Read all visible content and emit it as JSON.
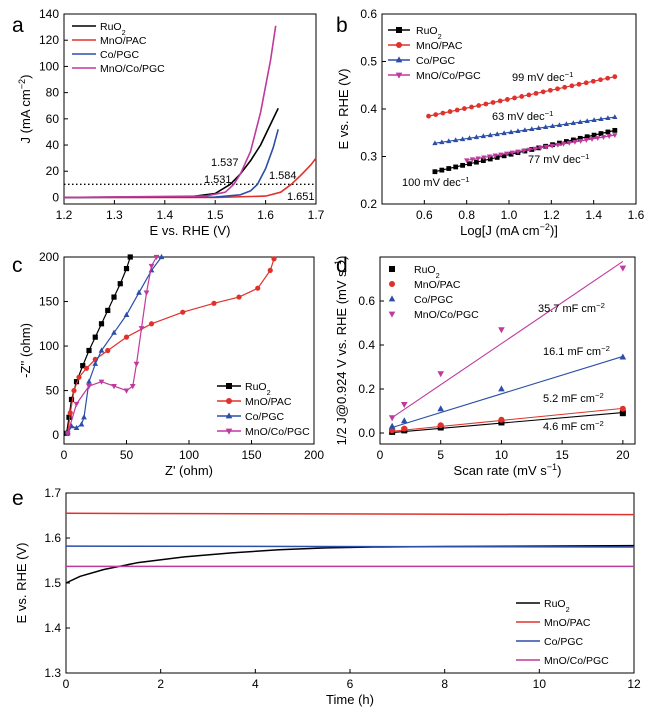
{
  "colors": {
    "ruo2": "#000000",
    "mno_pac": "#e0322c",
    "co_pgc": "#2c4ea8",
    "mno_co_pgc": "#c0399c"
  },
  "chart_data": [
    {
      "panel": "a",
      "type": "line",
      "xlabel": "E vs. RHE (V)",
      "ylabel": "J (mA cm-2)",
      "xlim": [
        1.2,
        1.7
      ],
      "ylim": [
        -5,
        140
      ],
      "xticks": [
        "1.2",
        "1.3",
        "1.4",
        "1.5",
        "1.6",
        "1.7"
      ],
      "yticks": [
        "0",
        "20",
        "40",
        "60",
        "80",
        "100",
        "120",
        "140"
      ],
      "reference_line": {
        "y": 10,
        "style": "dotted"
      },
      "legend": [
        "RuO2",
        "MnO/PAC",
        "Co/PGC",
        "MnO/Co/PGC"
      ],
      "series": [
        {
          "name": "RuO2",
          "x": [
            1.2,
            1.45,
            1.5,
            1.53,
            1.55,
            1.57,
            1.59,
            1.61,
            1.625
          ],
          "y": [
            0,
            0.5,
            3,
            10,
            18,
            28,
            40,
            56,
            68
          ]
        },
        {
          "name": "MnO/PAC",
          "x": [
            1.2,
            1.5,
            1.6,
            1.63,
            1.651,
            1.67,
            1.69,
            1.7
          ],
          "y": [
            0,
            0,
            1,
            4,
            10,
            17,
            25,
            30
          ]
        },
        {
          "name": "Co/PGC",
          "x": [
            1.2,
            1.5,
            1.55,
            1.57,
            1.584,
            1.6,
            1.615,
            1.625
          ],
          "y": [
            0,
            0.3,
            2,
            5,
            10,
            22,
            38,
            52
          ]
        },
        {
          "name": "MnO/Co/PGC",
          "x": [
            1.2,
            1.48,
            1.52,
            1.537,
            1.55,
            1.57,
            1.59,
            1.61,
            1.62
          ],
          "y": [
            0,
            1,
            4,
            10,
            18,
            35,
            65,
            105,
            131
          ]
        }
      ],
      "annotations": [
        {
          "text": "1.537",
          "series": "MnO/Co/PGC"
        },
        {
          "text": "1.531",
          "series": "RuO2"
        },
        {
          "text": "1.584",
          "series": "Co/PGC"
        },
        {
          "text": "1.651",
          "series": "MnO/PAC"
        }
      ]
    },
    {
      "panel": "b",
      "type": "scatter",
      "xlabel": "Log[J (mA cm-2)]",
      "ylabel": "E vs. RHE (V)",
      "xlim": [
        0.4,
        1.6
      ],
      "ylim": [
        0.2,
        0.6
      ],
      "xticks": [
        "0.6",
        "0.8",
        "1.0",
        "1.2",
        "1.4",
        "1.6"
      ],
      "yticks": [
        "0.2",
        "0.3",
        "0.4",
        "0.5",
        "0.6"
      ],
      "legend": [
        "RuO2",
        "MnO/PAC",
        "Co/PGC",
        "MnO/Co/PGC"
      ],
      "series": [
        {
          "name": "RuO2",
          "x": [
            0.65,
            1.5
          ],
          "y": [
            0.268,
            0.355
          ],
          "slope_label": "100 mV dec-1"
        },
        {
          "name": "MnO/PAC",
          "x": [
            0.62,
            1.5
          ],
          "y": [
            0.385,
            0.468
          ],
          "slope_label": "99 mV dec-1"
        },
        {
          "name": "Co/PGC",
          "x": [
            0.65,
            1.5
          ],
          "y": [
            0.328,
            0.383
          ],
          "slope_label": "63 mV dec-1"
        },
        {
          "name": "MnO/Co/PGC",
          "x": [
            0.8,
            1.5
          ],
          "y": [
            0.292,
            0.345
          ],
          "slope_label": "77 mV dec-1"
        }
      ]
    },
    {
      "panel": "c",
      "type": "line",
      "xlabel": "Z' (ohm)",
      "ylabel": "-Z'' (ohm)",
      "xlim": [
        0,
        200
      ],
      "ylim": [
        -10,
        200
      ],
      "xticks": [
        "0",
        "50",
        "100",
        "150",
        "200"
      ],
      "yticks": [
        "0",
        "50",
        "100",
        "150",
        "200"
      ],
      "legend": [
        "RuO2",
        "MnO/PAC",
        "Co/PGC",
        "MnO/Co/PGC"
      ],
      "series": [
        {
          "name": "RuO2",
          "x": [
            2,
            4,
            6,
            10,
            15,
            20,
            25,
            30,
            35,
            40,
            45,
            50,
            53
          ],
          "y": [
            2,
            20,
            40,
            60,
            78,
            95,
            110,
            125,
            140,
            155,
            170,
            187,
            200
          ]
        },
        {
          "name": "MnO/PAC",
          "x": [
            3,
            5,
            8,
            12,
            18,
            25,
            35,
            50,
            70,
            95,
            120,
            140,
            155,
            165,
            168
          ],
          "y": [
            2,
            25,
            50,
            65,
            75,
            85,
            95,
            110,
            125,
            138,
            148,
            155,
            165,
            185,
            198
          ]
        },
        {
          "name": "Co/PGC",
          "x": [
            3,
            6,
            10,
            14,
            16,
            20,
            25,
            30,
            40,
            50,
            60,
            70,
            78
          ],
          "y": [
            2,
            10,
            8,
            12,
            20,
            60,
            80,
            95,
            115,
            135,
            160,
            185,
            200
          ]
        },
        {
          "name": "MnO/Co/PGC",
          "x": [
            3,
            10,
            20,
            30,
            40,
            50,
            55,
            58,
            62,
            66,
            70,
            74
          ],
          "y": [
            2,
            35,
            55,
            60,
            55,
            50,
            55,
            80,
            120,
            160,
            190,
            200
          ]
        }
      ]
    },
    {
      "panel": "d",
      "type": "scatter",
      "xlabel": "Scan rate (mV s-1)",
      "ylabel": "1/2 J@0.924 V vs. RHE (mV s-1)",
      "xlim": [
        0,
        21
      ],
      "ylim": [
        -0.05,
        0.8
      ],
      "xticks": [
        "0",
        "5",
        "10",
        "15",
        "20"
      ],
      "yticks": [
        "0.0",
        "0.2",
        "0.4",
        "0.6"
      ],
      "legend": [
        "RuO2",
        "MnO/PAC",
        "Co/PGC",
        "MnO/Co/PGC"
      ],
      "x": [
        1,
        2,
        5,
        10,
        20
      ],
      "series": [
        {
          "name": "RuO2",
          "values": [
            0.005,
            0.012,
            0.025,
            0.048,
            0.09
          ],
          "fit": [
            0.002,
            0.093
          ],
          "label": "4.6 mF cm-2"
        },
        {
          "name": "MnO/PAC",
          "values": [
            0.012,
            0.02,
            0.035,
            0.06,
            0.11
          ],
          "fit": [
            0.008,
            0.112
          ],
          "label": "5.2 mF cm-2"
        },
        {
          "name": "Co/PGC",
          "values": [
            0.03,
            0.055,
            0.11,
            0.2,
            0.345
          ],
          "fit": [
            0.025,
            0.348
          ],
          "label": "16.1 mF cm-2"
        },
        {
          "name": "MnO/Co/PGC",
          "values": [
            0.07,
            0.13,
            0.27,
            0.47,
            0.75
          ],
          "fit": [
            0.07,
            0.78
          ],
          "label": "35.7 mF cm-2"
        }
      ]
    },
    {
      "panel": "e",
      "type": "line",
      "xlabel": "Time (h)",
      "ylabel": "E vs. RHE (V)",
      "xlim": [
        0,
        12
      ],
      "ylim": [
        1.3,
        1.7
      ],
      "xticks": [
        "0",
        "2",
        "4",
        "6",
        "8",
        "10",
        "12"
      ],
      "yticks": [
        "1.3",
        "1.4",
        "1.5",
        "1.6",
        "1.7"
      ],
      "legend": [
        "RuO2",
        "MnO/PAC",
        "Co/PGC",
        "MnO/Co/PGC"
      ],
      "series": [
        {
          "name": "RuO2",
          "x": [
            0,
            0.3,
            0.8,
            1.5,
            2.5,
            3.5,
            4.5,
            5.5,
            6.5,
            8,
            10,
            12
          ],
          "y": [
            1.5,
            1.515,
            1.53,
            1.545,
            1.558,
            1.567,
            1.574,
            1.578,
            1.58,
            1.581,
            1.582,
            1.583
          ]
        },
        {
          "name": "MnO/PAC",
          "x": [
            0,
            12
          ],
          "y": [
            1.655,
            1.652
          ]
        },
        {
          "name": "Co/PGC",
          "x": [
            0,
            12
          ],
          "y": [
            1.582,
            1.58
          ]
        },
        {
          "name": "MnO/Co/PGC",
          "x": [
            0,
            12
          ],
          "y": [
            1.537,
            1.537
          ]
        }
      ]
    }
  ]
}
